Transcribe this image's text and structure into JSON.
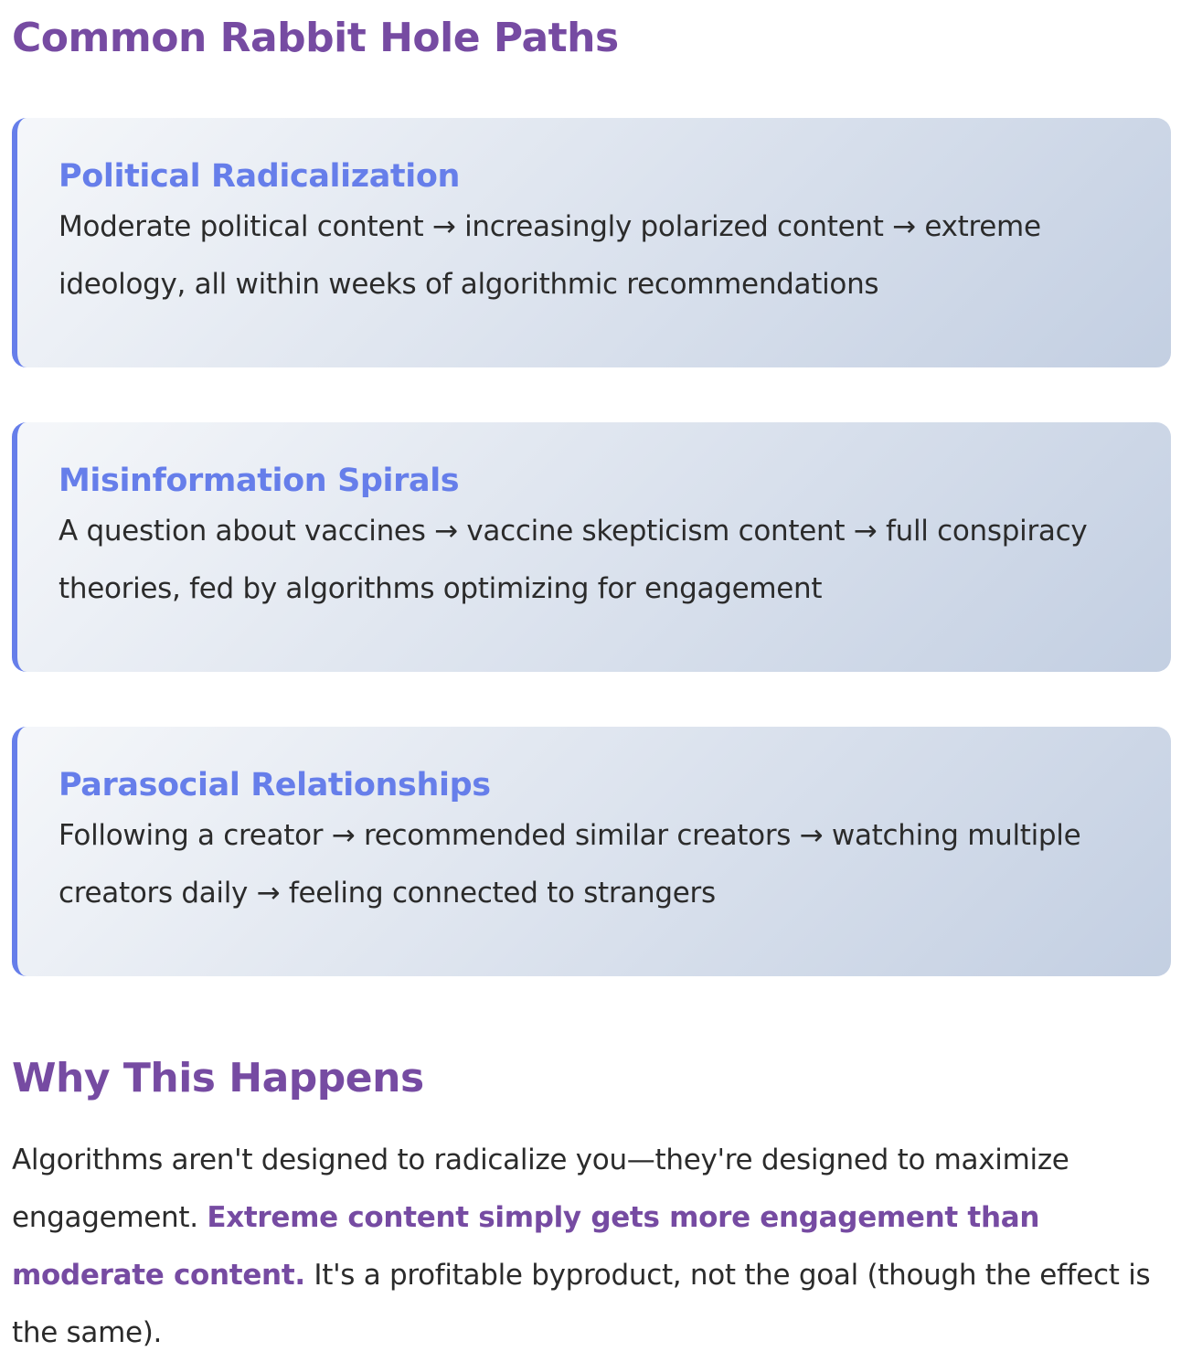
{
  "section1": {
    "title": "Common Rabbit Hole Paths"
  },
  "cards": [
    {
      "title": "Political Radicalization",
      "text": "Moderate political content → increasingly polarized content → extreme ideology, all within weeks of algorithmic recommendations"
    },
    {
      "title": "Misinformation Spirals",
      "text": "A question about vaccines → vaccine skepticism content → full conspiracy theories, fed by algorithms optimizing for engagement"
    },
    {
      "title": "Parasocial Relationships",
      "text": "Following a creator → recommended similar creators → watching multiple creators daily → feeling connected to strangers"
    }
  ],
  "section2": {
    "title": "Why This Happens",
    "text_before": "Algorithms aren't designed to radicalize you—they're designed to maximize engagement. ",
    "emphasis": "Extreme content simply gets more engagement than moderate content.",
    "text_after": " It's a profitable byproduct, not the goal (though the effect is the same)."
  },
  "colors": {
    "heading": "#764ba2",
    "card_title": "#667eea",
    "card_border": "#667eea",
    "card_gradient_start": "#f5f7fa",
    "card_gradient_end": "#c3cfe2",
    "body_text": "#2b2b2b"
  }
}
